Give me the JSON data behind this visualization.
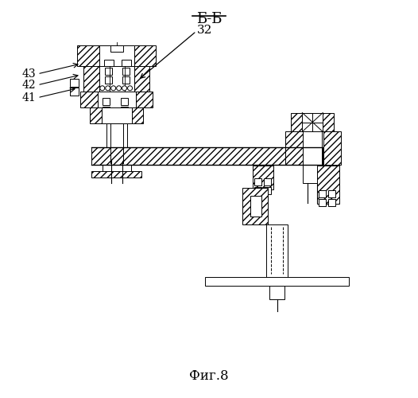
{
  "title": "Б-Б",
  "fig_label": "Фиг.8",
  "label_32": "32",
  "label_41": "41",
  "label_42": "42",
  "label_43": "43",
  "bg_color": "#ffffff",
  "line_color": "#000000",
  "figsize": [
    5.26,
    5.0
  ],
  "dpi": 100
}
